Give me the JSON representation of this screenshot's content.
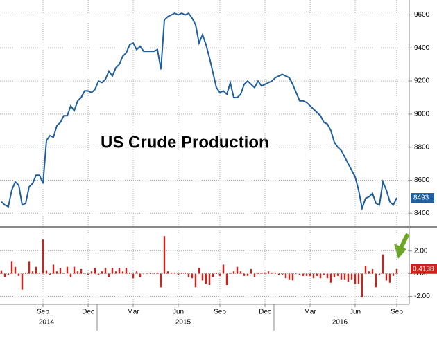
{
  "chart_data": [
    {
      "type": "line",
      "title": "US Crude Production",
      "color": "#1f5f9e",
      "values": [
        8470,
        8450,
        8440,
        8540,
        8590,
        8570,
        8450,
        8460,
        8560,
        8580,
        8630,
        8630,
        8580,
        8840,
        8870,
        8860,
        8930,
        8950,
        8990,
        8990,
        9050,
        9020,
        9080,
        9100,
        9140,
        9140,
        9130,
        9150,
        9200,
        9190,
        9210,
        9260,
        9230,
        9280,
        9300,
        9350,
        9370,
        9420,
        9430,
        9390,
        9410,
        9380,
        9380,
        9380,
        9380,
        9390,
        9270,
        9570,
        9590,
        9600,
        9610,
        9600,
        9610,
        9600,
        9610,
        9580,
        9540,
        9430,
        9480,
        9420,
        9340,
        9250,
        9160,
        9130,
        9140,
        9120,
        9190,
        9100,
        9100,
        9120,
        9180,
        9200,
        9180,
        9160,
        9200,
        9170,
        9180,
        9190,
        9200,
        9220,
        9230,
        9240,
        9230,
        9220,
        9180,
        9130,
        9080,
        9080,
        9070,
        9050,
        9030,
        9010,
        8990,
        8950,
        8940,
        8900,
        8830,
        8800,
        8780,
        8740,
        8700,
        8660,
        8620,
        8540,
        8430,
        8490,
        8500,
        8520,
        8460,
        8450,
        8590,
        8540,
        8470,
        8450,
        8493
      ],
      "ylim": [
        8330,
        9690
      ],
      "yticks": [
        8400,
        8600,
        8800,
        9000,
        9200,
        9400,
        9600
      ],
      "grid": true
    },
    {
      "type": "bar",
      "color": "#d0201a",
      "categories": [
        null,
        null,
        null,
        null,
        null,
        null,
        null,
        null,
        null,
        null,
        null,
        null,
        "Sep",
        null,
        null,
        null,
        null,
        null,
        null,
        null,
        null,
        null,
        null,
        null,
        null,
        "Dec",
        null,
        null,
        null,
        null,
        null,
        null,
        null,
        null,
        null,
        null,
        null,
        null,
        "Mar",
        null,
        null,
        null,
        null,
        null,
        null,
        null,
        null,
        null,
        null,
        null,
        null,
        "Jun",
        null,
        null,
        null,
        null,
        null,
        null,
        null,
        null,
        null,
        null,
        null,
        "Sep",
        null,
        null,
        null,
        null,
        null,
        null,
        null,
        null,
        null,
        null,
        null,
        null,
        "Dec",
        null,
        null,
        null,
        null,
        null,
        null,
        null,
        null,
        null,
        null,
        null,
        null,
        "Mar",
        null,
        null,
        null,
        null,
        null,
        null,
        null,
        null,
        null,
        null,
        null,
        null,
        "Jun",
        null,
        null,
        null,
        null,
        null,
        null,
        null,
        null,
        null,
        null,
        null,
        "Sep"
      ],
      "year_labels": [
        "2014",
        "2015",
        "2016"
      ],
      "values": [
        0.3,
        -0.3,
        -0.1,
        1.1,
        0.6,
        -0.2,
        -1.4,
        0.1,
        1.1,
        0.2,
        0.6,
        0.1,
        3.0,
        0.3,
        -0.1,
        0.8,
        0.2,
        0.5,
        0.0,
        0.6,
        -0.3,
        0.6,
        0.2,
        0.4,
        0.0,
        -0.1,
        0.2,
        0.5,
        -0.1,
        0.2,
        0.5,
        -0.3,
        0.5,
        0.2,
        0.5,
        0.2,
        0.5,
        0.1,
        -0.4,
        0.2,
        -0.3,
        0.0,
        0.0,
        0.1,
        0.0,
        0.1,
        -1.2,
        3.3,
        0.2,
        0.1,
        0.1,
        -0.1,
        0.1,
        0.1,
        -0.3,
        -0.4,
        -1.2,
        0.5,
        -0.6,
        -0.9,
        -1.0,
        -0.3,
        0.1,
        -0.2,
        0.8,
        -1.0,
        0.0,
        0.2,
        0.6,
        0.2,
        -0.2,
        -0.2,
        0.4,
        -0.3,
        0.1,
        0.1,
        0.1,
        0.2,
        0.1,
        0.1,
        -0.1,
        -0.1,
        -0.4,
        -0.5,
        -0.6,
        0.0,
        -0.1,
        -0.2,
        -0.2,
        -0.2,
        -0.4,
        -0.2,
        -0.4,
        -0.1,
        -0.4,
        -0.8,
        -0.3,
        -0.2,
        -0.5,
        -0.5,
        -0.7,
        -0.5,
        -0.9,
        -0.9,
        -2.1,
        0.7,
        0.2,
        0.4,
        -1.2,
        -0.1,
        1.7,
        -0.6,
        -0.8,
        -0.2,
        0.4138
      ],
      "ylim": [
        -2.7,
        3.8
      ],
      "yticks": [
        {
          "value": 2,
          "label": "2.00"
        },
        {
          "value": 0,
          "label": "0.00"
        },
        {
          "value": -2,
          "label": "-2.00"
        }
      ],
      "grid": true
    }
  ]
}
